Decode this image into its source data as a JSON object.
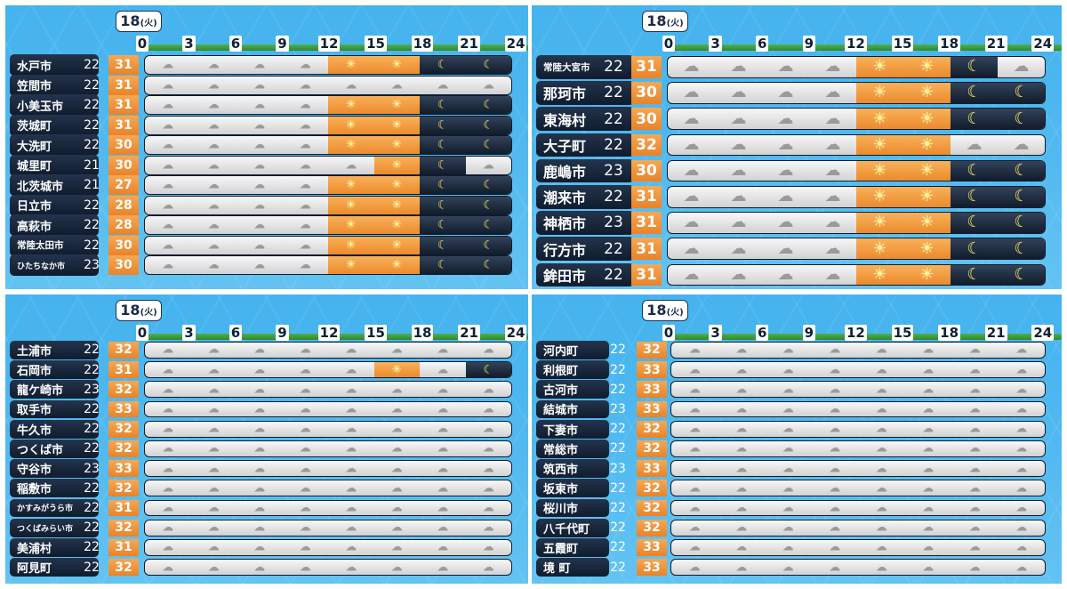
{
  "panels": [
    {
      "date": "18",
      "day": "(火)",
      "hours": [
        "0",
        "3",
        "6",
        "9",
        "12",
        "15",
        "18",
        "21",
        "24"
      ],
      "rows": [
        {
          "name": "水戸市",
          "min": "22",
          "max": "31",
          "icons": [
            "cloudy",
            "cloudy",
            "cloudy",
            "cloudy",
            "sunny",
            "sunny",
            "night",
            "night"
          ]
        },
        {
          "name": "笠間市",
          "min": "22",
          "max": "31",
          "icons": [
            "cloudy",
            "cloudy",
            "cloudy",
            "cloudy",
            "cloudy",
            "cloudy",
            "cloudy",
            "cloudy"
          ]
        },
        {
          "name": "小美玉市",
          "min": "22",
          "max": "31",
          "icons": [
            "cloudy",
            "cloudy",
            "cloudy",
            "cloudy",
            "sunny",
            "sunny",
            "night",
            "night"
          ]
        },
        {
          "name": "茨城町",
          "min": "22",
          "max": "31",
          "icons": [
            "cloudy",
            "cloudy",
            "cloudy",
            "cloudy",
            "sunny",
            "sunny",
            "night",
            "night"
          ]
        },
        {
          "name": "大洗町",
          "min": "22",
          "max": "30",
          "icons": [
            "cloudy",
            "cloudy",
            "cloudy",
            "cloudy",
            "sunny",
            "sunny",
            "night",
            "night"
          ]
        },
        {
          "name": "城里町",
          "min": "21",
          "max": "30",
          "icons": [
            "cloudy",
            "cloudy",
            "cloudy",
            "cloudy",
            "cloudy",
            "sunny",
            "night",
            "cloudy"
          ]
        },
        {
          "name": "北茨城市",
          "min": "21",
          "max": "27",
          "icons": [
            "cloudy",
            "cloudy",
            "cloudy",
            "cloudy",
            "sunny",
            "sunny",
            "night",
            "night"
          ]
        },
        {
          "name": "日立市",
          "min": "22",
          "max": "28",
          "icons": [
            "cloudy",
            "cloudy",
            "cloudy",
            "cloudy",
            "sunny",
            "sunny",
            "night",
            "night"
          ]
        },
        {
          "name": "高萩市",
          "min": "22",
          "max": "28",
          "icons": [
            "cloudy",
            "cloudy",
            "cloudy",
            "cloudy",
            "sunny",
            "sunny",
            "night",
            "night"
          ]
        },
        {
          "name": "常陸太田市",
          "min": "22",
          "max": "30",
          "icons": [
            "cloudy",
            "cloudy",
            "cloudy",
            "cloudy",
            "sunny",
            "sunny",
            "night",
            "night"
          ]
        },
        {
          "name": "ひたちなか市",
          "min": "23",
          "max": "30",
          "icons": [
            "cloudy",
            "cloudy",
            "cloudy",
            "cloudy",
            "sunny",
            "sunny",
            "night",
            "night"
          ]
        }
      ]
    },
    {
      "date": "18",
      "day": "(火)",
      "hours": [
        "0",
        "3",
        "6",
        "9",
        "12",
        "15",
        "18",
        "21",
        "24"
      ],
      "rows": [
        {
          "name": "常陸大宮市",
          "min": "22",
          "max": "31",
          "icons": [
            "cloudy",
            "cloudy",
            "cloudy",
            "cloudy",
            "sunny",
            "sunny",
            "night",
            "cloudy"
          ]
        },
        {
          "name": "那珂市",
          "min": "22",
          "max": "30",
          "icons": [
            "cloudy",
            "cloudy",
            "cloudy",
            "cloudy",
            "sunny",
            "sunny",
            "night",
            "night"
          ]
        },
        {
          "name": "東海村",
          "min": "22",
          "max": "30",
          "icons": [
            "cloudy",
            "cloudy",
            "cloudy",
            "cloudy",
            "sunny",
            "sunny",
            "night",
            "night"
          ]
        },
        {
          "name": "大子町",
          "min": "22",
          "max": "32",
          "icons": [
            "cloudy",
            "cloudy",
            "cloudy",
            "cloudy",
            "sunny",
            "sunny",
            "cloudy",
            "cloudy"
          ]
        },
        {
          "name": "鹿嶋市",
          "min": "23",
          "max": "30",
          "icons": [
            "cloudy",
            "cloudy",
            "cloudy",
            "cloudy",
            "sunny",
            "sunny",
            "night",
            "night"
          ]
        },
        {
          "name": "潮来市",
          "min": "22",
          "max": "31",
          "icons": [
            "cloudy",
            "cloudy",
            "cloudy",
            "cloudy",
            "sunny",
            "sunny",
            "night",
            "night"
          ]
        },
        {
          "name": "神栖市",
          "min": "23",
          "max": "31",
          "icons": [
            "cloudy",
            "cloudy",
            "cloudy",
            "cloudy",
            "sunny",
            "sunny",
            "night",
            "night"
          ]
        },
        {
          "name": "行方市",
          "min": "22",
          "max": "31",
          "icons": [
            "cloudy",
            "cloudy",
            "cloudy",
            "cloudy",
            "sunny",
            "sunny",
            "night",
            "night"
          ]
        },
        {
          "name": "鉾田市",
          "min": "22",
          "max": "31",
          "icons": [
            "cloudy",
            "cloudy",
            "cloudy",
            "cloudy",
            "sunny",
            "sunny",
            "night",
            "night"
          ]
        }
      ]
    },
    {
      "date": "18",
      "day": "(火)",
      "hours": [
        "0",
        "3",
        "6",
        "9",
        "12",
        "15",
        "18",
        "21",
        "24"
      ],
      "rows": [
        {
          "name": "土浦市",
          "min": "22",
          "max": "32",
          "icons": [
            "cloudy",
            "cloudy",
            "cloudy",
            "cloudy",
            "cloudy",
            "cloudy",
            "cloudy",
            "cloudy"
          ]
        },
        {
          "name": "石岡市",
          "min": "22",
          "max": "31",
          "icons": [
            "cloudy",
            "cloudy",
            "cloudy",
            "cloudy",
            "cloudy",
            "sunny",
            "cloudy",
            "night"
          ]
        },
        {
          "name": "龍ケ崎市",
          "min": "23",
          "max": "32",
          "icons": [
            "cloudy",
            "cloudy",
            "cloudy",
            "cloudy",
            "cloudy",
            "cloudy",
            "cloudy",
            "cloudy"
          ]
        },
        {
          "name": "取手市",
          "min": "22",
          "max": "33",
          "icons": [
            "cloudy",
            "cloudy",
            "cloudy",
            "cloudy",
            "cloudy",
            "cloudy",
            "cloudy",
            "cloudy"
          ]
        },
        {
          "name": "牛久市",
          "min": "22",
          "max": "32",
          "icons": [
            "cloudy",
            "cloudy",
            "cloudy",
            "cloudy",
            "cloudy",
            "cloudy",
            "cloudy",
            "cloudy"
          ]
        },
        {
          "name": "つくば市",
          "min": "22",
          "max": "32",
          "icons": [
            "cloudy",
            "cloudy",
            "cloudy",
            "cloudy",
            "cloudy",
            "cloudy",
            "cloudy",
            "cloudy"
          ]
        },
        {
          "name": "守谷市",
          "min": "23",
          "max": "33",
          "icons": [
            "cloudy",
            "cloudy",
            "cloudy",
            "cloudy",
            "cloudy",
            "cloudy",
            "cloudy",
            "cloudy"
          ]
        },
        {
          "name": "稲敷市",
          "min": "22",
          "max": "32",
          "icons": [
            "cloudy",
            "cloudy",
            "cloudy",
            "cloudy",
            "cloudy",
            "cloudy",
            "cloudy",
            "cloudy"
          ]
        },
        {
          "name": "かすみがうら市",
          "min": "22",
          "max": "31",
          "icons": [
            "cloudy",
            "cloudy",
            "cloudy",
            "cloudy",
            "cloudy",
            "cloudy",
            "cloudy",
            "cloudy"
          ]
        },
        {
          "name": "つくばみらい市",
          "min": "22",
          "max": "32",
          "icons": [
            "cloudy",
            "cloudy",
            "cloudy",
            "cloudy",
            "cloudy",
            "cloudy",
            "cloudy",
            "cloudy"
          ]
        },
        {
          "name": "美浦村",
          "min": "22",
          "max": "31",
          "icons": [
            "cloudy",
            "cloudy",
            "cloudy",
            "cloudy",
            "cloudy",
            "cloudy",
            "cloudy",
            "cloudy"
          ]
        },
        {
          "name": "阿見町",
          "min": "22",
          "max": "32",
          "icons": [
            "cloudy",
            "cloudy",
            "cloudy",
            "cloudy",
            "cloudy",
            "cloudy",
            "cloudy",
            "cloudy"
          ]
        }
      ]
    },
    {
      "date": "18",
      "day": "(火)",
      "hours": [
        "0",
        "3",
        "6",
        "9",
        "12",
        "15",
        "18",
        "21",
        "24"
      ],
      "rows": [
        {
          "name": "河内町",
          "min": "22",
          "max": "32",
          "icons": [
            "cloudy",
            "cloudy",
            "cloudy",
            "cloudy",
            "cloudy",
            "cloudy",
            "cloudy",
            "cloudy"
          ]
        },
        {
          "name": "利根町",
          "min": "22",
          "max": "33",
          "icons": [
            "cloudy",
            "cloudy",
            "cloudy",
            "cloudy",
            "cloudy",
            "cloudy",
            "cloudy",
            "cloudy"
          ]
        },
        {
          "name": "古河市",
          "min": "22",
          "max": "33",
          "icons": [
            "cloudy",
            "cloudy",
            "cloudy",
            "cloudy",
            "cloudy",
            "cloudy",
            "cloudy",
            "cloudy"
          ]
        },
        {
          "name": "結城市",
          "min": "23",
          "max": "33",
          "icons": [
            "cloudy",
            "cloudy",
            "cloudy",
            "cloudy",
            "cloudy",
            "cloudy",
            "cloudy",
            "cloudy"
          ]
        },
        {
          "name": "下妻市",
          "min": "22",
          "max": "32",
          "icons": [
            "cloudy",
            "cloudy",
            "cloudy",
            "cloudy",
            "cloudy",
            "cloudy",
            "cloudy",
            "cloudy"
          ]
        },
        {
          "name": "常総市",
          "min": "22",
          "max": "32",
          "icons": [
            "cloudy",
            "cloudy",
            "cloudy",
            "cloudy",
            "cloudy",
            "cloudy",
            "cloudy",
            "cloudy"
          ]
        },
        {
          "name": "筑西市",
          "min": "23",
          "max": "33",
          "icons": [
            "cloudy",
            "cloudy",
            "cloudy",
            "cloudy",
            "cloudy",
            "cloudy",
            "cloudy",
            "cloudy"
          ]
        },
        {
          "name": "坂東市",
          "min": "22",
          "max": "32",
          "icons": [
            "cloudy",
            "cloudy",
            "cloudy",
            "cloudy",
            "cloudy",
            "cloudy",
            "cloudy",
            "cloudy"
          ]
        },
        {
          "name": "桜川市",
          "min": "22",
          "max": "32",
          "icons": [
            "cloudy",
            "cloudy",
            "cloudy",
            "cloudy",
            "cloudy",
            "cloudy",
            "cloudy",
            "cloudy"
          ]
        },
        {
          "name": "八千代町",
          "min": "22",
          "max": "32",
          "icons": [
            "cloudy",
            "cloudy",
            "cloudy",
            "cloudy",
            "cloudy",
            "cloudy",
            "cloudy",
            "cloudy"
          ]
        },
        {
          "name": "五霞町",
          "min": "22",
          "max": "33",
          "icons": [
            "cloudy",
            "cloudy",
            "cloudy",
            "cloudy",
            "cloudy",
            "cloudy",
            "cloudy",
            "cloudy"
          ]
        },
        {
          "name": "境 町",
          "min": "22",
          "max": "33",
          "icons": [
            "cloudy",
            "cloudy",
            "cloudy",
            "cloudy",
            "cloudy",
            "cloudy",
            "cloudy",
            "cloudy"
          ]
        }
      ]
    }
  ],
  "icon_glyphs": {
    "cloudy": "☁",
    "sunny": "☀",
    "night": "☾"
  },
  "icon_names": {
    "cloudy": "cloud-icon",
    "sunny": "sun-cloud-icon",
    "night": "moon-icon"
  },
  "colors": {
    "sky": "#4fb8ef",
    "max_temp": "#ec8a2d",
    "name_plate": "#15233a",
    "axis": "#3a9a3a"
  }
}
